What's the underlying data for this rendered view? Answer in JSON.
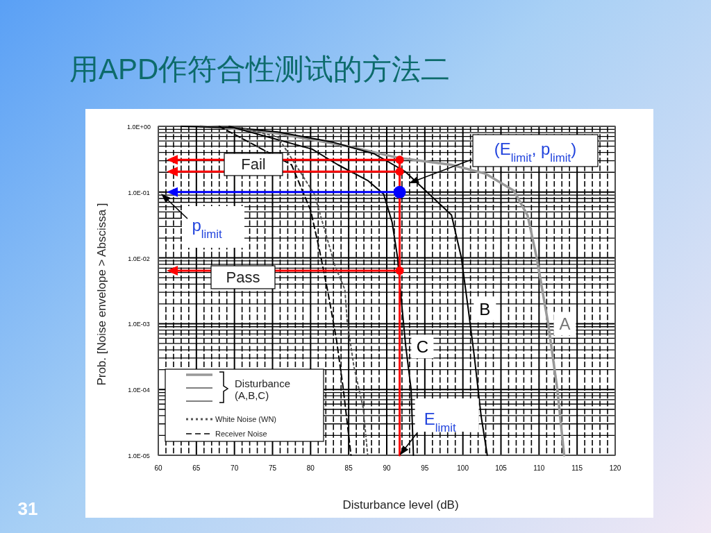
{
  "chart_data": {
    "type": "line",
    "title": "用APD作符合性测试的方法二",
    "xlabel": "Disturbance level (dB)",
    "ylabel": "Prob. [Noise envelope > Abscissa ]",
    "log": "y",
    "xlim": [
      60,
      120
    ],
    "ylim": [
      1e-05,
      1
    ],
    "xticks": [
      60,
      65,
      70,
      75,
      80,
      85,
      90,
      95,
      100,
      105,
      110,
      115,
      120
    ],
    "yticks": [
      {
        "value": 1,
        "label": "1.0E+00"
      },
      {
        "value": 0.1,
        "label": "1.0E-01"
      },
      {
        "value": 0.01,
        "label": "1.0E-02"
      },
      {
        "value": 0.001,
        "label": "1.0E-03"
      },
      {
        "value": 0.0001,
        "label": "1.0E-04"
      },
      {
        "value": 1e-05,
        "label": "1.0E-05"
      }
    ],
    "grid": true,
    "legend": "bottom left",
    "legend_title": "Disturbance\n(A,B,C)",
    "series": [
      {
        "name": "A",
        "color": "#999999",
        "x": [
          65.5,
          70,
          75.7,
          84.8,
          91.6,
          98.5,
          103,
          106.7,
          108.5,
          109.7,
          111.2,
          112.4,
          113.3
        ],
        "values": [
          1,
          0.92,
          0.78,
          0.5,
          0.33,
          0.26,
          0.19,
          0.105,
          0.044,
          0.01,
          0.001,
          0.0001,
          1e-05
        ]
      },
      {
        "name": "B",
        "color": "#000000",
        "x": [
          63,
          70,
          75.7,
          83,
          88.4,
          92.4,
          98.5,
          99.8,
          100.7,
          101.5,
          102.4,
          103.2
        ],
        "values": [
          1,
          0.95,
          0.82,
          0.57,
          0.38,
          0.206,
          0.045,
          0.01,
          0.0017,
          0.00032,
          3.9e-05,
          1e-05
        ]
      },
      {
        "name": "C",
        "color": "#000000",
        "x": [
          69.3,
          80.2,
          83.6,
          87.5,
          89.6,
          90.7,
          91.4,
          91.9,
          92.5,
          93.2,
          93.5
        ],
        "values": [
          1,
          0.45,
          0.26,
          0.15,
          0.093,
          0.035,
          0.0104,
          0.0024,
          0.00045,
          0.0001,
          1e-05
        ]
      },
      {
        "name": "White Noise (WN)",
        "color": "#555555",
        "line_style": "dotted",
        "x": [
          70,
          75.7,
          80.5,
          83.2,
          84.5,
          84.8,
          85.7,
          86.9,
          87.5
        ],
        "values": [
          1,
          0.69,
          0.093,
          0.0076,
          0.0033,
          0.0011,
          0.00022,
          5.3e-05,
          1e-05
        ]
      },
      {
        "name": "Receiver Noise",
        "color": "#000000",
        "line_style": "dashed",
        "x": [
          68,
          77.5,
          80,
          81.1,
          82.3,
          83.4,
          84.3,
          85.3
        ],
        "values": [
          1,
          0.26,
          0.053,
          0.0143,
          0.0029,
          0.00057,
          0.0001,
          1e-05
        ]
      },
      {
        "color": "#ff0000",
        "x": [
          91.7,
          91.7
        ],
        "values": [
          0.31,
          1e-05
        ]
      },
      {
        "type": "scatter",
        "color": "#ff0000",
        "marker": "circle",
        "x": [
          91.7,
          91.7,
          91.7
        ],
        "values": [
          0.31,
          0.205,
          0.0064
        ]
      },
      {
        "type": "scatter",
        "color": "#0000ff",
        "marker": "circle",
        "x": [
          91.7
        ],
        "values": [
          0.1
        ]
      }
    ],
    "annotations": [
      "Fail",
      "Pass",
      "p$_{limit}$",
      "(E$_{limit}$, p$_{limit}$)",
      {
        "text": "E$_{limit}$",
        "x": 91.7,
        "y": 1e-05
      },
      "31"
    ]
  }
}
